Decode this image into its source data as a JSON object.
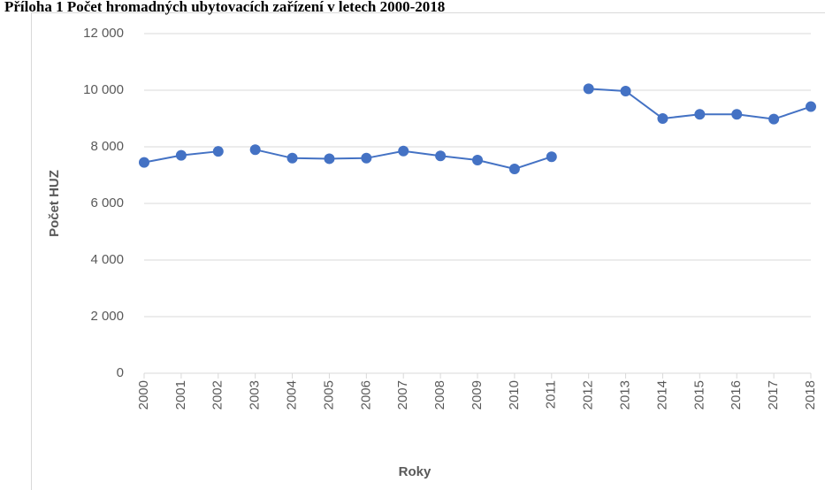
{
  "chart_data": {
    "type": "line",
    "title": "Příloha 1 Počet hromadných ubytovacích zařízení v letech 2000-2018",
    "x_label": "Roky",
    "y_label": "Počet HUZ",
    "categories": [
      "2000",
      "2001",
      "2002",
      "2003",
      "2004",
      "2005",
      "2006",
      "2007",
      "2008",
      "2009",
      "2010",
      "2011",
      "2012",
      "2013",
      "2014",
      "2015",
      "2016",
      "2017",
      "2018"
    ],
    "series": [
      {
        "color": "#4472c4",
        "values": [
          7450,
          7700,
          7838,
          null,
          null,
          null,
          null,
          null,
          null,
          null,
          null,
          null,
          null,
          null,
          null,
          null,
          null,
          null,
          null
        ]
      },
      {
        "color": "#4472c4",
        "values": [
          null,
          null,
          null,
          7900,
          7600,
          7580,
          7600,
          7850,
          7680,
          7530,
          7220,
          7650,
          null,
          null,
          null,
          null,
          null,
          null,
          null
        ]
      },
      {
        "color": "#4472c4",
        "values": [
          null,
          null,
          null,
          null,
          null,
          null,
          null,
          null,
          null,
          null,
          null,
          null,
          10050,
          9970,
          9000,
          9150,
          9150,
          8980,
          9420
        ]
      }
    ],
    "ylim": [
      0,
      12000
    ],
    "yticks": [
      0,
      {
        "value": 2000,
        "label": "2 000"
      },
      {
        "value": 4000,
        "label": "4 000"
      },
      {
        "value": 6000,
        "label": "6 000"
      },
      {
        "value": 8000,
        "label": "8 000"
      },
      {
        "value": 10000,
        "label": "10 000"
      },
      {
        "value": 12000,
        "label": "12 000"
      }
    ],
    "grid": true
  }
}
